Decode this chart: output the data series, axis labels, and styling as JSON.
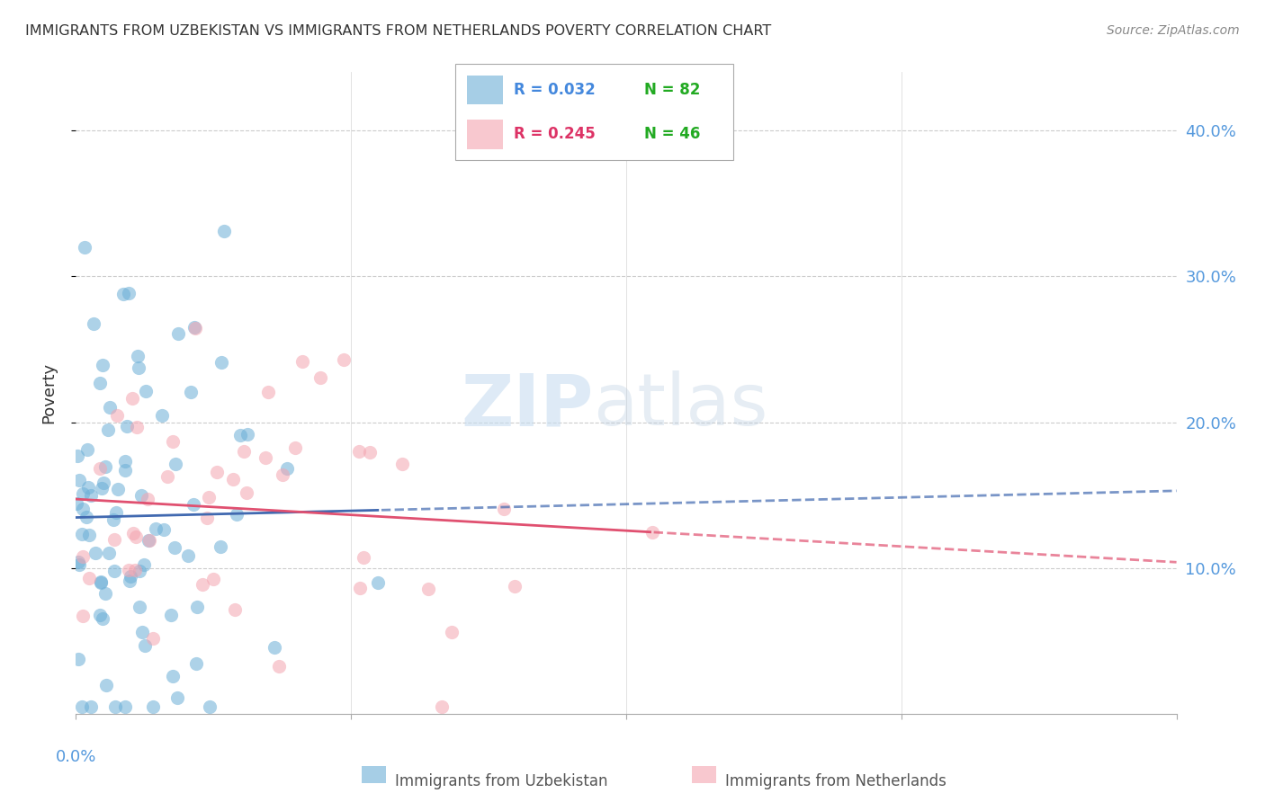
{
  "title": "IMMIGRANTS FROM UZBEKISTAN VS IMMIGRANTS FROM NETHERLANDS POVERTY CORRELATION CHART",
  "source": "Source: ZipAtlas.com",
  "ylabel": "Poverty",
  "ytick_values": [
    0.1,
    0.2,
    0.3,
    0.4
  ],
  "xlim": [
    0.0,
    0.4
  ],
  "ylim": [
    0.0,
    0.44
  ],
  "legend_r1": "R = 0.032",
  "legend_n1": "N = 82",
  "legend_r2": "R = 0.245",
  "legend_n2": "N = 46",
  "legend_label1": "Immigrants from Uzbekistan",
  "legend_label2": "Immigrants from Netherlands",
  "blue_color": "#6baed6",
  "pink_color": "#f4a4b0",
  "blue_line_color": "#4169b0",
  "pink_line_color": "#e05070"
}
